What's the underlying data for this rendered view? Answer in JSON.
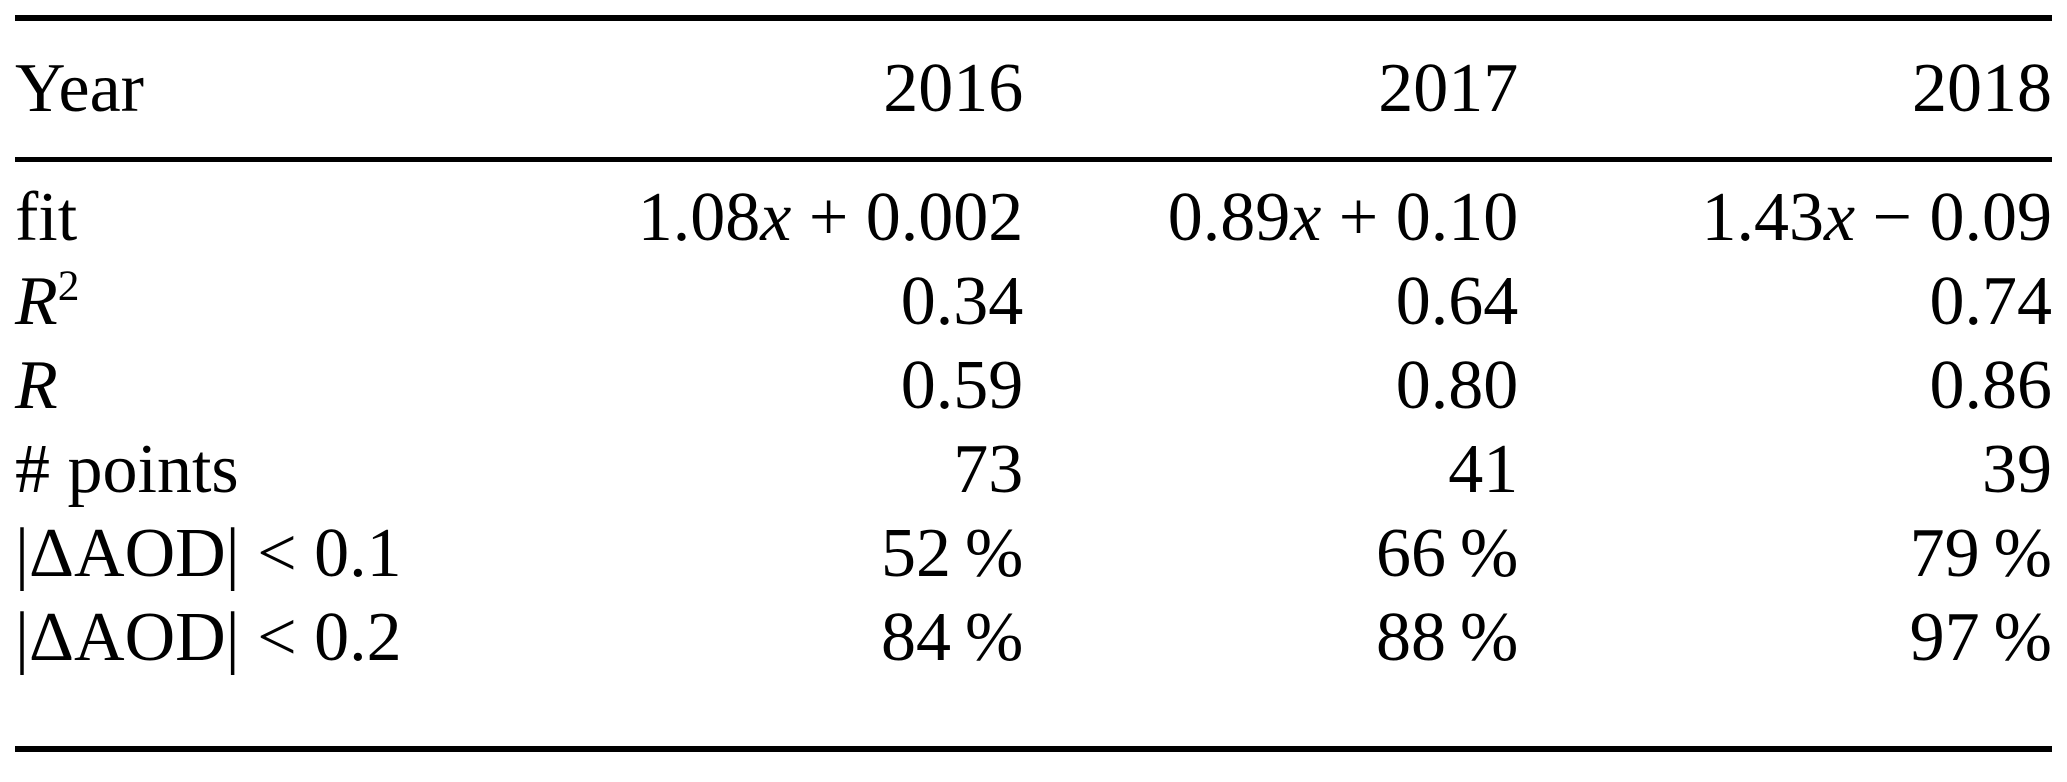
{
  "table": {
    "header": {
      "label": "Year",
      "columns": [
        "2016",
        "2017",
        "2018"
      ]
    },
    "rows": [
      {
        "id": "fit",
        "label": "fit",
        "label_italic": false,
        "label_sup": "",
        "math_values": true,
        "values": [
          "1.08x + 0.002",
          "0.89x + 0.10",
          "1.43x − 0.09"
        ]
      },
      {
        "id": "r-squared",
        "label": "R",
        "label_italic": true,
        "label_sup": "2",
        "math_values": false,
        "values": [
          "0.34",
          "0.64",
          "0.74"
        ]
      },
      {
        "id": "r",
        "label": "R",
        "label_italic": true,
        "label_sup": "",
        "math_values": false,
        "values": [
          "0.59",
          "0.80",
          "0.86"
        ]
      },
      {
        "id": "num-points",
        "label": "# points",
        "label_italic": false,
        "label_sup": "",
        "math_values": false,
        "values": [
          "73",
          "41",
          "39"
        ]
      },
      {
        "id": "delta-aod-lt-01",
        "label": "|ΔAOD| < 0.1",
        "label_italic": false,
        "label_sup": "",
        "math_values": false,
        "values": [
          "52 %",
          "66 %",
          "79 %"
        ]
      },
      {
        "id": "delta-aod-lt-02",
        "label": "|ΔAOD| < 0.2",
        "label_italic": false,
        "label_sup": "",
        "math_values": false,
        "values": [
          "84 %",
          "88 %",
          "97 %"
        ]
      }
    ]
  },
  "colors": {
    "text": "#000000",
    "background": "#ffffff",
    "rule": "#000000"
  },
  "chart_data": {
    "type": "table",
    "title": "Linear fit statistics per year",
    "columns": [
      "Year",
      "2016",
      "2017",
      "2018"
    ],
    "rows": [
      [
        "fit",
        "1.08x + 0.002",
        "0.89x + 0.10",
        "1.43x − 0.09"
      ],
      [
        "R^2",
        0.34,
        0.64,
        0.74
      ],
      [
        "R",
        0.59,
        0.8,
        0.86
      ],
      [
        "# points",
        73,
        41,
        39
      ],
      [
        "|ΔAOD| < 0.1 (%)",
        52,
        66,
        79
      ],
      [
        "|ΔAOD| < 0.2 (%)",
        84,
        88,
        97
      ]
    ]
  }
}
